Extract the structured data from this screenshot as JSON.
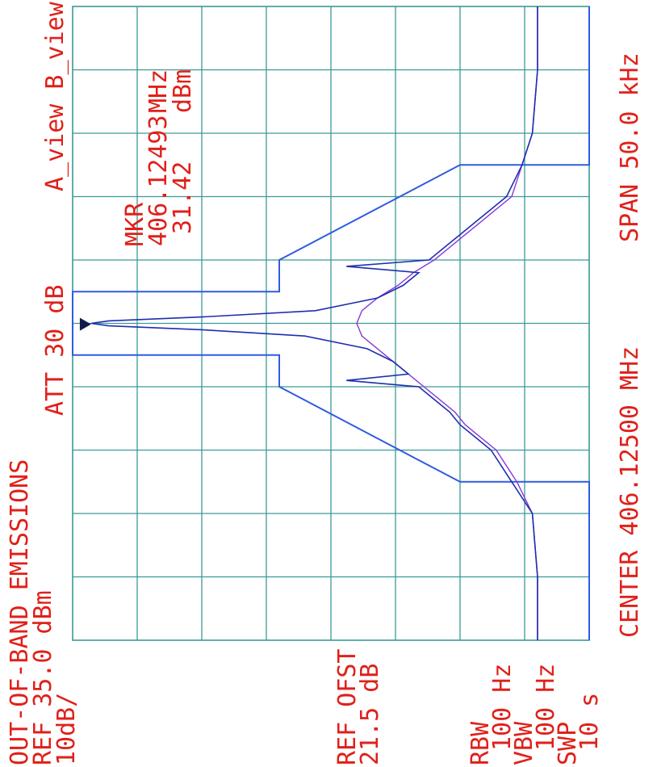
{
  "labels": {
    "title": "OUT-OF-BAND EMISSIONS",
    "ref": "REF 35.0 dBm",
    "scale": "10dB/",
    "att": "ATT 30 dB",
    "ref_ofst_1": "REF OFST",
    "ref_ofst_2": "21.5 dB",
    "rbw_1": "RBW",
    "rbw_2": "100 Hz",
    "vbw_1": "VBW",
    "vbw_2": "100 Hz",
    "swp_1": "SWP",
    "swp_2": "10 s",
    "views": "A_view B_view",
    "mkr": "MKR",
    "mkr_freq": "406.12493",
    "mkr_freq_unit": "MHz",
    "mkr_level": "31.42",
    "mkr_level_unit": "dBm",
    "center": "CENTER 406.12500 MHz",
    "span": "SPAN 50.0 kHz"
  },
  "colors": {
    "text": "#e0201a",
    "grid": "#3a9a98",
    "mask": "#2f5ce0",
    "trace_a": "#1c2fb0",
    "trace_b": "#8a38d8"
  },
  "chart_data": {
    "type": "line",
    "title": "OUT-OF-BAND EMISSIONS",
    "xlabel": "CENTER 406.12500 MHz",
    "ylabel": "REF 35.0 dBm",
    "orientation": "rotated 90 degrees",
    "center_mhz": 406.125,
    "span_khz": 50.0,
    "xlim_khz": [
      -25,
      25
    ],
    "ref_dbm": 35.0,
    "db_per_div": 10,
    "ylim_dbm": [
      -65,
      35
    ],
    "grid": true,
    "marker": {
      "freq_mhz": 406.12493,
      "level_dbm": 31.42
    },
    "series": [
      {
        "name": "A_view",
        "x_khz": [
          -25,
          -20,
          -15,
          -12.5,
          -10,
          -9,
          -8,
          -7,
          -6,
          -5,
          -4.5,
          -4,
          -3,
          -2,
          -1,
          -0.5,
          -0.2,
          0,
          0.2,
          0.5,
          1,
          2,
          3,
          4,
          4.5,
          5,
          6,
          7,
          8,
          9,
          10,
          12.5,
          15,
          20,
          25
        ],
        "y_dbm": [
          -55,
          -55,
          -54,
          -50,
          -46,
          -43,
          -40,
          -38,
          -35,
          -32,
          -18,
          -30,
          -27,
          -22,
          -10,
          10,
          28,
          31.4,
          28,
          10,
          -12,
          -24,
          -29,
          -32,
          -18,
          -34,
          -37,
          -40,
          -43,
          -46,
          -49,
          -52,
          -54,
          -55,
          -55
        ]
      },
      {
        "name": "B_view",
        "x_khz": [
          -25,
          -20,
          -15,
          -12.5,
          -10,
          -9,
          -8,
          -7,
          -6,
          -5,
          -4,
          -3,
          -2,
          -1,
          0,
          1,
          2,
          3,
          4,
          5,
          6,
          7,
          8,
          9,
          10,
          12.5,
          15,
          20,
          25
        ],
        "y_dbm": [
          -55,
          -55,
          -54,
          -51,
          -47,
          -44,
          -41,
          -39,
          -36,
          -33,
          -30,
          -27,
          -24,
          -21,
          -20,
          -21,
          -24,
          -28,
          -31,
          -35,
          -38,
          -41,
          -44,
          -47,
          -50,
          -52,
          -54,
          -55,
          -55
        ]
      },
      {
        "name": "mask",
        "x_khz": [
          -25,
          -12.5,
          -12.5,
          -5,
          -2.5,
          -2.5,
          2.5,
          2.5,
          5,
          12.5,
          12.5,
          25
        ],
        "y_dbm": [
          -65,
          -65,
          -40,
          -5,
          -5,
          35,
          35,
          -5,
          -5,
          -40,
          -65,
          -65
        ]
      }
    ]
  }
}
